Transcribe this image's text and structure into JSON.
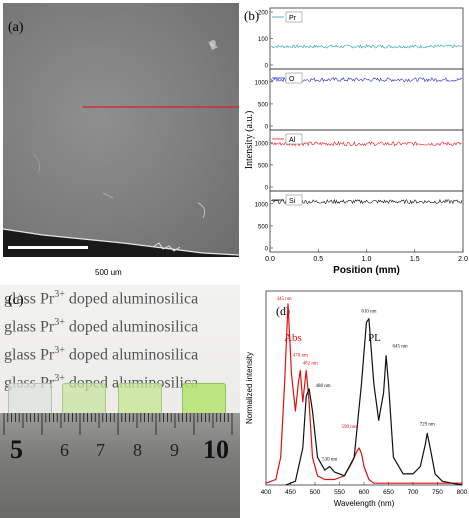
{
  "panel_a": {
    "label": "(a)",
    "scale_bar": "500 um"
  },
  "panel_b": {
    "label": "(b)",
    "y_axis_label": "Intensity (a.u.)",
    "x_axis_label": "Position (mm)",
    "x_ticks": [
      "0.0",
      "0.5",
      "1.0",
      "1.5",
      "2.0"
    ],
    "x_range": [
      0.0,
      2.0
    ],
    "subplots": [
      {
        "element": "Pr",
        "y_ticks": [
          "0",
          "100",
          "200"
        ],
        "y_range": [
          0,
          200
        ],
        "level": 70,
        "color": "#2aa5a0"
      },
      {
        "element": "O",
        "y_ticks": [
          "0",
          "500",
          "1000"
        ],
        "y_range": [
          0,
          1200
        ],
        "level": 1050,
        "color": "#2233cc"
      },
      {
        "element": "Al",
        "y_ticks": [
          "0",
          "500",
          "1000"
        ],
        "y_range": [
          0,
          1200
        ],
        "level": 980,
        "color": "#e02020"
      },
      {
        "element": "Si",
        "y_ticks": [
          "0",
          "500",
          "1000"
        ],
        "y_range": [
          0,
          1200
        ],
        "level": 1050,
        "color": "#111111"
      }
    ]
  },
  "panel_c": {
    "label": "(c)",
    "text_lines": [
      {
        "prefix": "glass",
        "ion": "Pr",
        "charge": "3+",
        "suffix": " doped aluminosilica"
      },
      {
        "prefix": "glass",
        "ion": "Pr",
        "charge": "3+",
        "suffix": " doped aluminosilica"
      },
      {
        "prefix": "glass",
        "ion": "Pr",
        "charge": "3+",
        "suffix": " doped aluminosilica"
      },
      {
        "prefix": "glass",
        "ion": "Pr",
        "charge": "3+",
        "suffix": " doped aluminosilica"
      }
    ],
    "ruler_numbers": [
      "5",
      "6",
      "7",
      "8",
      "9",
      "10"
    ],
    "glass_colors": [
      "#dfe6df",
      "#d6e8b8",
      "#d2eab0",
      "#c4e88a"
    ]
  },
  "chart_data": [
    {
      "type": "line",
      "panel": "(b)",
      "xlabel": "Position (mm)",
      "ylabel": "Intensity (a.u.)",
      "xlim": [
        0.0,
        2.0
      ],
      "series": [
        {
          "name": "Pr",
          "x": [
            0.0,
            0.5,
            1.0,
            1.5,
            2.0
          ],
          "values": [
            70,
            72,
            69,
            71,
            70
          ]
        },
        {
          "name": "O",
          "x": [
            0.0,
            0.5,
            1.0,
            1.5,
            2.0
          ],
          "values": [
            1050,
            1060,
            1040,
            1055,
            1050
          ]
        },
        {
          "name": "Al",
          "x": [
            0.0,
            0.5,
            1.0,
            1.5,
            2.0
          ],
          "values": [
            980,
            985,
            975,
            990,
            980
          ]
        },
        {
          "name": "Si",
          "x": [
            0.0,
            0.5,
            1.0,
            1.5,
            2.0
          ],
          "values": [
            1050,
            1045,
            1055,
            1050,
            1048
          ]
        }
      ]
    },
    {
      "type": "line",
      "panel": "(d)",
      "label": "(d)",
      "xlabel": "Wavelength (nm)",
      "ylabel": "Normalized intensity",
      "xlim": [
        400,
        800
      ],
      "ylim": [
        0,
        1.05
      ],
      "x_ticks": [
        "400",
        "450",
        "500",
        "550",
        "600",
        "650",
        "700",
        "750",
        "800"
      ],
      "series_labels": {
        "abs": "Abs",
        "pl": "PL"
      },
      "series": [
        {
          "name": "Abs",
          "color": "#e01010",
          "x": [
            400,
            420,
            430,
            438,
            445,
            452,
            460,
            466,
            470,
            475,
            482,
            488,
            495,
            505,
            520,
            540,
            560,
            575,
            585,
            590,
            595,
            600,
            610,
            620,
            640,
            660,
            700,
            750,
            800
          ],
          "values": [
            0.01,
            0.03,
            0.15,
            0.55,
            0.98,
            0.6,
            0.4,
            0.55,
            0.62,
            0.45,
            0.62,
            0.45,
            0.15,
            0.05,
            0.03,
            0.03,
            0.05,
            0.12,
            0.18,
            0.2,
            0.17,
            0.1,
            0.03,
            0.01,
            0.01,
            0.01,
            0.01,
            0.01,
            0.01
          ]
        },
        {
          "name": "PL",
          "color": "#111111",
          "x": [
            440,
            460,
            475,
            482,
            488,
            495,
            505,
            520,
            530,
            540,
            560,
            580,
            595,
            605,
            610,
            620,
            630,
            640,
            645,
            650,
            660,
            680,
            700,
            715,
            725,
            729,
            735,
            745,
            760,
            780,
            800
          ],
          "values": [
            0.0,
            0.02,
            0.2,
            0.48,
            0.52,
            0.4,
            0.15,
            0.08,
            0.1,
            0.07,
            0.05,
            0.15,
            0.55,
            0.88,
            0.9,
            0.55,
            0.35,
            0.5,
            0.7,
            0.55,
            0.15,
            0.06,
            0.06,
            0.1,
            0.22,
            0.28,
            0.2,
            0.06,
            0.02,
            0.01,
            0.0
          ]
        }
      ],
      "annotations": [
        {
          "text": "445 nm",
          "x": 445,
          "series": "Abs"
        },
        {
          "text": "470 nm",
          "x": 470,
          "series": "Abs"
        },
        {
          "text": "482 nm",
          "x": 482,
          "series": "Abs"
        },
        {
          "text": "590 nm",
          "x": 590,
          "series": "Abs"
        },
        {
          "text": "488 nm",
          "x": 488,
          "series": "PL"
        },
        {
          "text": "530 nm",
          "x": 530,
          "series": "PL"
        },
        {
          "text": "610 nm",
          "x": 610,
          "series": "PL"
        },
        {
          "text": "645 nm",
          "x": 645,
          "series": "PL"
        },
        {
          "text": "729 nm",
          "x": 729,
          "series": "PL"
        }
      ]
    }
  ]
}
